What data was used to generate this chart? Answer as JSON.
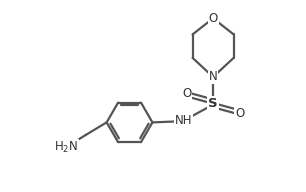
{
  "background": "#ffffff",
  "line_color": "#555555",
  "line_width": 1.6,
  "text_color": "#333333",
  "font_size": 8.5,
  "xlim": [
    0,
    10
  ],
  "ylim": [
    0,
    6.5
  ]
}
